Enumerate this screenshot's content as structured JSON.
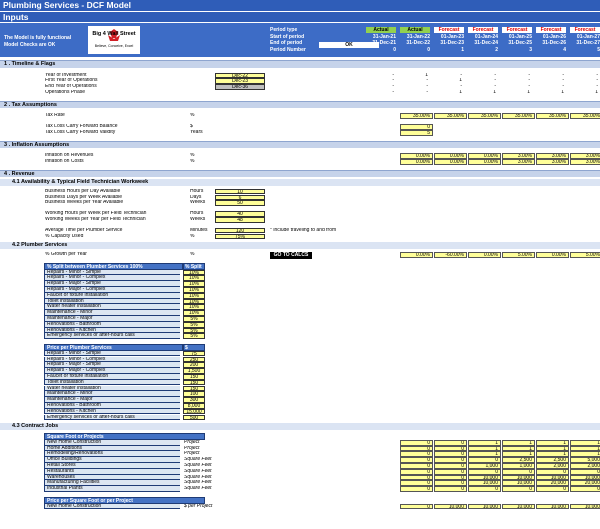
{
  "header": {
    "title": "Plumbing Services - DCF Model",
    "subtitle": "Inputs",
    "status": [
      "The Model is fully functional",
      "Model Checks are OK"
    ],
    "logo": {
      "name": "Big 4 Wall Street",
      "tagline": "Believe, Conceive, Excel"
    },
    "period_labels": [
      "Period type",
      "Start of period",
      "End of period",
      "Period Number"
    ],
    "check": "OK",
    "type_fills": {
      "Actual": "#92d050",
      "Forecast": "#ffffff"
    },
    "forecast_color": "#e00000",
    "period_types": [
      "Actual",
      "Actual",
      "Forecast",
      "Forecast",
      "Forecast",
      "Forecast",
      "Forecast"
    ],
    "starts": [
      "31-Jan-21",
      "31-Jan-22",
      "01-Jan-23",
      "01-Jan-24",
      "01-Jan-25",
      "01-Jan-26",
      "01-Jan-27"
    ],
    "ends": [
      "31-Dec-21",
      "31-Dec-22",
      "31-Dec-23",
      "31-Dec-24",
      "31-Dec-25",
      "31-Dec-26",
      "31-Dec-27"
    ],
    "numbers": [
      "0",
      "0",
      "1",
      "2",
      "3",
      "4",
      "5"
    ]
  },
  "sections": [
    {
      "title": "1 . Timeline & Flags",
      "groups": [
        {
          "rows": [
            {
              "label": "Year of Investment",
              "input": "Dec-22",
              "values": [
                "-",
                "1",
                "-",
                "-",
                "-",
                "-",
                "-"
              ]
            },
            {
              "label": "First Year of Operations",
              "input": "Dec-23",
              "values": [
                "-",
                "-",
                "1",
                "-",
                "-",
                "-",
                "-"
              ]
            },
            {
              "label": "End Year of Operations",
              "input": "Dec-36",
              "input_fill": "#bfbfbf",
              "values": [
                "-",
                "-",
                "-",
                "-",
                "-",
                "-",
                "-"
              ]
            },
            {
              "label": "Operations Phase",
              "values": [
                "-",
                "-",
                "1",
                "1",
                "1",
                "1",
                "1"
              ]
            }
          ]
        }
      ]
    },
    {
      "title": "2 . Tax Assumptions",
      "cell_fill": "#ffff99",
      "groups": [
        {
          "rows": [
            {
              "label": "Tax Rate",
              "unit": "%",
              "values": [
                null,
                "35.00%",
                "35.00%",
                "35.00%",
                "35.00%",
                "35.00%",
                "35.00%"
              ]
            }
          ]
        },
        {
          "rows": [
            {
              "label": "Tax Loss Carry Forward Balance",
              "unit": "$",
              "values": [
                null,
                "0",
                null,
                null,
                null,
                null,
                null
              ]
            },
            {
              "label": "Tax Loss Carry Forward Validity",
              "unit": "Years",
              "values": [
                null,
                "5",
                null,
                null,
                null,
                null,
                null
              ]
            }
          ]
        }
      ]
    },
    {
      "title": "3 . Inflation Assumptions",
      "cell_fill": "#ffff99",
      "groups": [
        {
          "rows": [
            {
              "label": "Inflation on Revenues",
              "unit": "%",
              "values": [
                null,
                "0.00%",
                "0.00%",
                "0.00%",
                "3.00%",
                "3.00%",
                "3.00%"
              ]
            },
            {
              "label": "Inflation on Costs",
              "unit": "%",
              "values": [
                null,
                "0.00%",
                "0.00%",
                "0.00%",
                "3.00%",
                "3.00%",
                "3.00%"
              ]
            }
          ]
        }
      ]
    },
    {
      "title": "4 . Revenue",
      "cell_fill": "#ffff99",
      "subsections": [
        {
          "title": "4.1 Availability & Typical Field Technician Workweek",
          "groups": [
            {
              "rows": [
                {
                  "label": "Business Hours per Day Available",
                  "unit": "Hours",
                  "input": "10"
                },
                {
                  "label": "Business Days per Week Available",
                  "unit": "Days",
                  "input": "6"
                },
                {
                  "label": "Business Weeks per Year Available",
                  "unit": "Weeks",
                  "input": "50"
                }
              ]
            },
            {
              "rows": [
                {
                  "label": "Working Hours per Week per Field Technician",
                  "unit": "Hours",
                  "input": "40"
                },
                {
                  "label": "Working Weeks per Year per Field Technician",
                  "unit": "Weeks",
                  "input": "48"
                }
              ]
            },
            {
              "rows": [
                {
                  "label": "Average Time per Plumber Service",
                  "unit": "Minutes",
                  "input": "120",
                  "note": "* include traveling to and from"
                },
                {
                  "label": "% Capacity Used",
                  "unit": "%",
                  "input": "75%"
                }
              ]
            }
          ]
        },
        {
          "title": "4.2 Plumber Services",
          "groups": [
            {
              "rows": [
                {
                  "label": "% Growth per Year",
                  "unit": "%",
                  "button": "GO TO CALCS",
                  "values": [
                    null,
                    "0.00%",
                    "-60.00%",
                    "0.00%",
                    "5.00%",
                    "0.00%",
                    "5.00%"
                  ]
                }
              ]
            },
            {
              "header": "% Split between Plumber Services 100%",
              "header_unit": "% Split",
              "rows": [
                {
                  "label": "Repairs - Minor - Simple",
                  "input": "10%"
                },
                {
                  "label": "Repairs - Minor - Complex",
                  "input": "10%"
                },
                {
                  "label": "Repairs - Major - Simple",
                  "input": "10%"
                },
                {
                  "label": "Repairs - Major - Complex",
                  "input": "10%"
                },
                {
                  "label": "Faucet or fixture installation",
                  "input": "10%"
                },
                {
                  "label": "Toilet installation",
                  "input": "10%"
                },
                {
                  "label": "Water heater installation",
                  "input": "10%"
                },
                {
                  "label": "Maintenance - Minor",
                  "input": "10%"
                },
                {
                  "label": "Maintenance - Major",
                  "input": "5%"
                },
                {
                  "label": "Renovations - Bathroom",
                  "input": "5%"
                },
                {
                  "label": "Renovations - Kitchen",
                  "input": "5%"
                },
                {
                  "label": "Emergency services or after-hours calls",
                  "input": "5%"
                }
              ]
            },
            {
              "header": "Price per Plumber Services",
              "header_unit": "$",
              "rows": [
                {
                  "label": "Repairs - Minor - Simple",
                  "input": "75"
                },
                {
                  "label": "Repairs - Minor - Complex",
                  "input": "250"
                },
                {
                  "label": "Repairs - Major - Simple",
                  "input": "200"
                },
                {
                  "label": "Repairs - Major - Complex",
                  "input": "1,500"
                },
                {
                  "label": "Faucet or fixture installation",
                  "input": "150"
                },
                {
                  "label": "Toilet installation",
                  "input": "150"
                },
                {
                  "label": "Water heater installation",
                  "input": "150"
                },
                {
                  "label": "Maintenance - Minor",
                  "input": "100"
                },
                {
                  "label": "Maintenance - Major",
                  "input": "300"
                },
                {
                  "label": "Renovations - Bathroom",
                  "input": "8,000"
                },
                {
                  "label": "Renovations - Kitchen",
                  "input": "15,000"
                },
                {
                  "label": "Emergency services or after-hours calls",
                  "input": "500"
                }
              ]
            }
          ]
        },
        {
          "title": "4.3 Contract Jobs",
          "groups": [
            {
              "header": "Square Foot or Projects",
              "rows": [
                {
                  "label": "New Home Construction",
                  "unit": "Project",
                  "values": [
                    null,
                    "0",
                    "0",
                    "1",
                    "1",
                    "1",
                    "1"
                  ]
                },
                {
                  "label": "Home Additions",
                  "unit": "Project",
                  "values": [
                    null,
                    "0",
                    "0",
                    "1",
                    "1",
                    "1",
                    "1"
                  ]
                },
                {
                  "label": "Remodeling/Renovations",
                  "unit": "Project",
                  "values": [
                    null,
                    "0",
                    "0",
                    "1",
                    "1",
                    "1",
                    "1"
                  ]
                },
                {
                  "label": "Office Buildings",
                  "unit": "Square Feet",
                  "values": [
                    null,
                    "0",
                    "0",
                    "0",
                    "2,500",
                    "2,500",
                    "5,000"
                  ]
                },
                {
                  "label": "Retail Stores",
                  "unit": "Square Feet",
                  "values": [
                    null,
                    "0",
                    "0",
                    "1,000",
                    "1,000",
                    "2,000",
                    "2,000"
                  ]
                },
                {
                  "label": "Restaurants",
                  "unit": "Square Feet",
                  "values": [
                    null,
                    "0",
                    "0",
                    "0",
                    "0",
                    "0",
                    "0"
                  ]
                },
                {
                  "label": "Warehouses",
                  "unit": "Square Feet",
                  "values": [
                    null,
                    "0",
                    "0",
                    "10,000",
                    "10,000",
                    "10,000",
                    "10,000"
                  ]
                },
                {
                  "label": "Manufacturing Facilities",
                  "unit": "Square Feet",
                  "values": [
                    null,
                    "0",
                    "0",
                    "10,000",
                    "10,000",
                    "20,000",
                    "20,000"
                  ]
                },
                {
                  "label": "Industrial Plants",
                  "unit": "Square Feet",
                  "values": [
                    null,
                    "0",
                    "0",
                    "0",
                    "0",
                    "0",
                    "0"
                  ]
                }
              ]
            },
            {
              "header": "Price per Square Foot or per Project",
              "rows": [
                {
                  "label": "New Home Construction",
                  "unit": "$ per Project",
                  "values": [
                    null,
                    "0",
                    "10,000",
                    "10,000",
                    "10,000",
                    "10,000",
                    "10,000"
                  ]
                }
              ]
            }
          ]
        }
      ]
    }
  ]
}
